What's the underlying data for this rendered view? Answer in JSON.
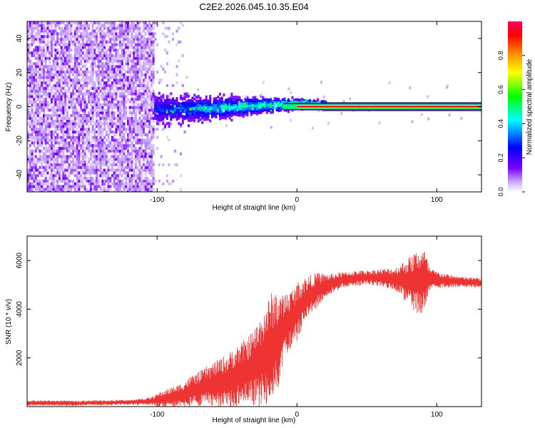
{
  "figure_title": "C2E2.2026.045.10.35.E04",
  "chart_data": [
    {
      "id": "spectrogram",
      "type": "heatmap",
      "title": "C2E2.2026.045.10.35.E04",
      "xlabel": "Height of straight line (km)",
      "ylabel": "Frequency (Hz)",
      "xlim": [
        -193,
        132
      ],
      "ylim": [
        -50,
        50
      ],
      "xticks": [
        -100,
        0,
        100
      ],
      "xtick_labels": [
        "-100",
        "0",
        "100"
      ],
      "yticks": [
        -40,
        -20,
        0,
        20,
        40
      ],
      "ytick_labels": [
        "-40",
        "-20",
        "0",
        "20",
        "40"
      ],
      "grid": false,
      "colorbar": {
        "label": "Normalized spectral amplitude",
        "range": [
          0,
          1
        ],
        "ticks": [
          0.0,
          0.2,
          0.4,
          0.6,
          0.8
        ],
        "tick_labels": [
          "0.0",
          "0.2",
          "0.4",
          "0.6",
          "0.8"
        ],
        "colors": [
          "#ffffff",
          "#7a00ff",
          "#0000ff",
          "#00ffff",
          "#00ff00",
          "#ffff00",
          "#ff7f00",
          "#ff0000",
          "#ff0066"
        ]
      },
      "regions": [
        {
          "description": "scattered noise",
          "x_range": [
            -193,
            -102
          ],
          "y_range": [
            -50,
            50
          ],
          "amplitude": 0.12
        },
        {
          "description": "sparse noise",
          "x_range": [
            -102,
            -80
          ],
          "y_range": [
            -50,
            50
          ],
          "amplitude": 0.05
        },
        {
          "description": "broadened signal band",
          "x_range": [
            -102,
            -20
          ],
          "y_range": [
            -5,
            5
          ],
          "amplitude": 0.35
        },
        {
          "description": "narrowing signal",
          "x_range": [
            -20,
            18
          ],
          "y_range": [
            -2,
            2
          ],
          "amplitude": 0.6
        },
        {
          "description": "steady carrier line",
          "x_range": [
            18,
            132
          ],
          "y_range": [
            -1,
            1
          ],
          "amplitude": 0.95
        }
      ]
    },
    {
      "id": "snr",
      "type": "line",
      "xlabel": "Height of straight line (km)",
      "ylabel": "SNR (10 * v/v)",
      "xlim": [
        -193,
        132
      ],
      "ylim": [
        0,
        7000
      ],
      "xticks": [
        -100,
        0,
        100
      ],
      "xtick_labels": [
        "-100",
        "0",
        "100"
      ],
      "yticks": [
        2000,
        4000,
        6000
      ],
      "ytick_labels": [
        "2000",
        "4000",
        "6000"
      ],
      "grid": false,
      "series": [
        {
          "name": "SNR",
          "color": "#ee3333",
          "x": [
            -193,
            -180,
            -160,
            -140,
            -120,
            -105,
            -100,
            -95,
            -90,
            -85,
            -80,
            -75,
            -70,
            -65,
            -60,
            -55,
            -50,
            -45,
            -40,
            -35,
            -30,
            -27,
            -24,
            -20,
            -17,
            -14,
            -12,
            -10,
            -8,
            -5,
            -2,
            0,
            5,
            10,
            15,
            20,
            25,
            30,
            35,
            40,
            50,
            60,
            70,
            75,
            80,
            85,
            88,
            91,
            93,
            95,
            100,
            110,
            120,
            132
          ],
          "mean": [
            150,
            150,
            140,
            160,
            170,
            220,
            280,
            320,
            380,
            440,
            520,
            640,
            720,
            830,
            900,
            980,
            1050,
            1200,
            1350,
            1480,
            1650,
            1800,
            2000,
            2300,
            2500,
            2650,
            2900,
            3100,
            3300,
            3500,
            3700,
            3900,
            4300,
            4600,
            4800,
            4950,
            5050,
            5150,
            5220,
            5260,
            5300,
            5300,
            5250,
            5200,
            5150,
            5100,
            5150,
            5200,
            5200,
            5200,
            5200,
            5150,
            5120,
            5080
          ],
          "noise": [
            100,
            100,
            100,
            100,
            100,
            150,
            250,
            350,
            400,
            450,
            550,
            650,
            700,
            800,
            900,
            1000,
            1100,
            1200,
            1300,
            1400,
            1600,
            1800,
            2000,
            2200,
            2300,
            2100,
            1700,
            1500,
            1400,
            1300,
            1200,
            1200,
            1000,
            800,
            700,
            500,
            400,
            350,
            300,
            300,
            300,
            350,
            450,
            700,
            1000,
            1300,
            1400,
            1300,
            900,
            500,
            350,
            250,
            200,
            200
          ]
        }
      ]
    }
  ]
}
